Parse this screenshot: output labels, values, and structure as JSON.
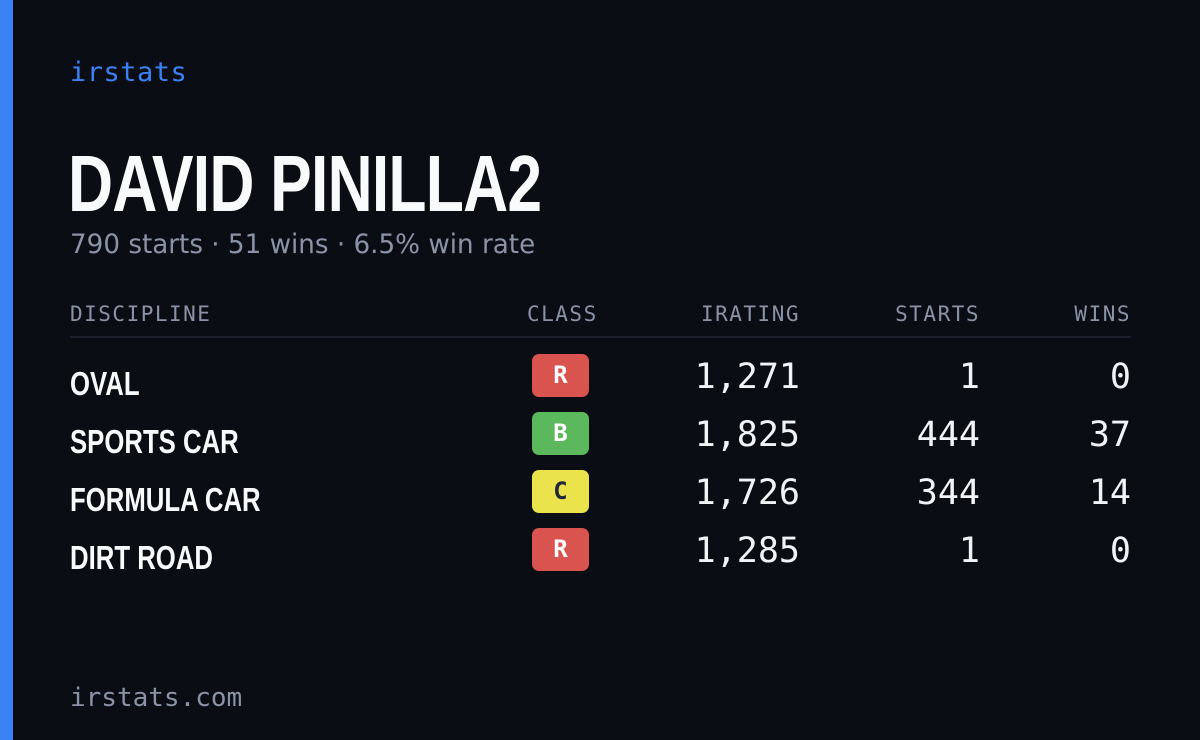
{
  "brand": "irstats",
  "driver": {
    "name": "DAVID PINILLA2",
    "summary": "790 starts · 51 wins · 6.5% win rate"
  },
  "table": {
    "headers": {
      "discipline": "DISCIPLINE",
      "class": "CLASS",
      "irating": "IRATING",
      "starts": "STARTS",
      "wins": "WINS"
    },
    "rows": [
      {
        "discipline": "OVAL",
        "class": "R",
        "class_color": "#d9534f",
        "class_text_color": "#ffffff",
        "irating": "1,271",
        "starts": "1",
        "wins": "0"
      },
      {
        "discipline": "SPORTS CAR",
        "class": "B",
        "class_color": "#5cb85c",
        "class_text_color": "#ffffff",
        "irating": "1,825",
        "starts": "444",
        "wins": "37"
      },
      {
        "discipline": "FORMULA CAR",
        "class": "C",
        "class_color": "#ebe34b",
        "class_text_color": "#1f2937",
        "irating": "1,726",
        "starts": "344",
        "wins": "14"
      },
      {
        "discipline": "DIRT ROAD",
        "class": "R",
        "class_color": "#d9534f",
        "class_text_color": "#ffffff",
        "irating": "1,285",
        "starts": "1",
        "wins": "0"
      }
    ]
  },
  "footer": "irstats.com",
  "colors": {
    "accent": "#3b82f6",
    "background": "#0a0d14"
  }
}
